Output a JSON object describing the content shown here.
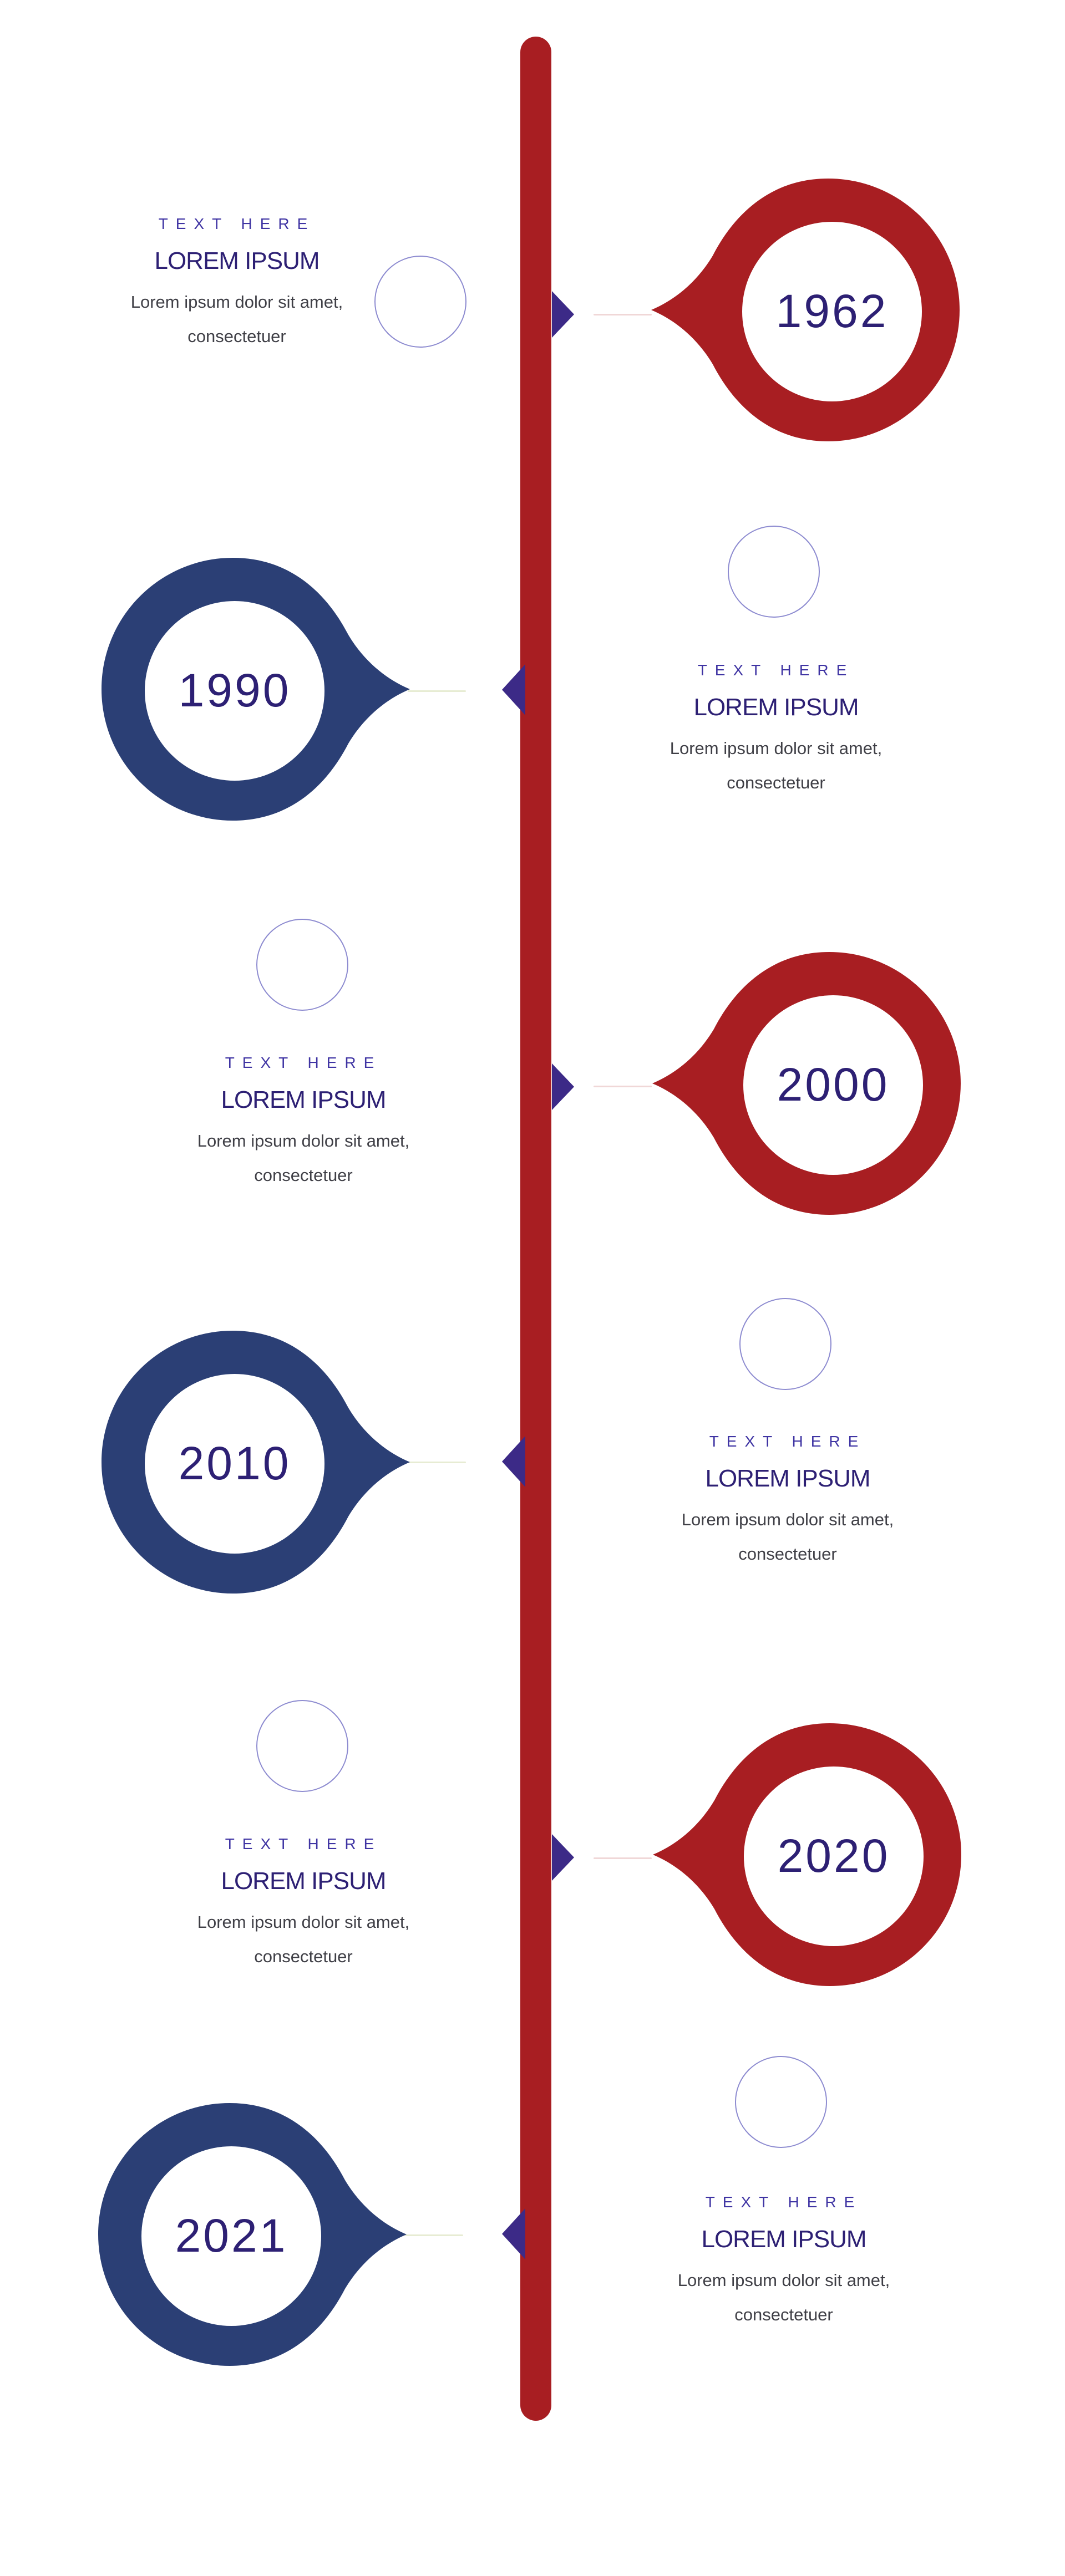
{
  "colors": {
    "spine": "#a81e22",
    "red_pin": "#a81e22",
    "blue_pin": "#2b3f75",
    "year_text": "#2d2074",
    "accent_marker": "#3c2a87",
    "ring_outline": "#8d8bd0"
  },
  "timeline": {
    "items": [
      {
        "year": "1962",
        "kicker": "TEXT HERE",
        "title": "LOREM IPSUM",
        "description": "Lorem ipsum dolor sit amet, consectetuer"
      },
      {
        "year": "1990",
        "kicker": "TEXT HERE",
        "title": "LOREM IPSUM",
        "description": "Lorem ipsum dolor sit amet, consectetuer"
      },
      {
        "year": "2000",
        "kicker": "TEXT HERE",
        "title": "LOREM IPSUM",
        "description": "Lorem ipsum dolor sit amet, consectetuer"
      },
      {
        "year": "2010",
        "kicker": "TEXT HERE",
        "title": "LOREM IPSUM",
        "description": "Lorem ipsum dolor sit amet, consectetuer"
      },
      {
        "year": "2020",
        "kicker": "TEXT HERE",
        "title": "LOREM IPSUM",
        "description": "Lorem ipsum dolor sit amet, consectetuer"
      },
      {
        "year": "2021",
        "kicker": "TEXT HERE",
        "title": "LOREM IPSUM",
        "description": "Lorem ipsum dolor sit amet, consectetuer"
      }
    ]
  }
}
